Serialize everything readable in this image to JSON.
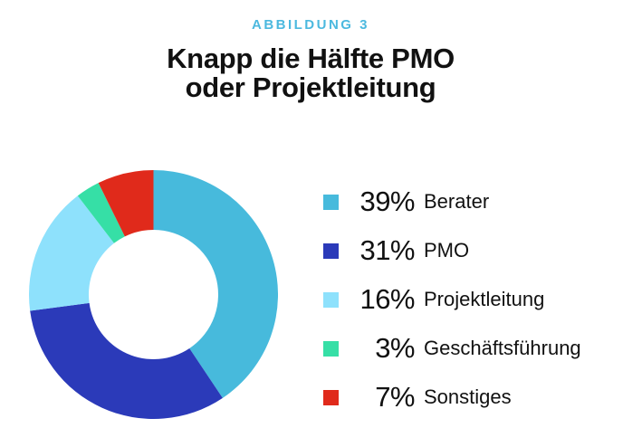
{
  "figure_label": "ABBILDUNG 3",
  "title": {
    "line1": "Knapp die Hälfte PMO",
    "line2": "oder Projektleitung"
  },
  "accent_color": "#4CB9DF",
  "text_color": "#111111",
  "chart_data": {
    "type": "pie",
    "subtype": "donut",
    "figure_label": "ABBILDUNG 3",
    "title": "Knapp die Hälfte PMO oder Projektleitung",
    "categories": [
      "Berater",
      "PMO",
      "Projektleitung",
      "Geschäftsführung",
      "Sonstiges"
    ],
    "values": [
      39,
      31,
      16,
      3,
      7
    ],
    "unit": "%",
    "colors": [
      "#47BADC",
      "#2B3AB9",
      "#8EE1FC",
      "#36DFA6",
      "#E02A1B"
    ],
    "start_angle_deg": 0,
    "clockwise": true,
    "donut_hole_ratio": 0.52,
    "legend_position": "right",
    "note": "values sum to 96; ring segments are normalized to fill 360 degrees"
  },
  "legend": {
    "items": [
      {
        "percent": "39%",
        "label": "Berater",
        "color": "#47BADC"
      },
      {
        "percent": "31%",
        "label": "PMO",
        "color": "#2B3AB9"
      },
      {
        "percent": "16%",
        "label": "Projektleitung",
        "color": "#8EE1FC"
      },
      {
        "percent": "3%",
        "label": "Geschäftsführung",
        "color": "#36DFA6"
      },
      {
        "percent": "7%",
        "label": "Sonstiges",
        "color": "#E02A1B"
      }
    ]
  }
}
